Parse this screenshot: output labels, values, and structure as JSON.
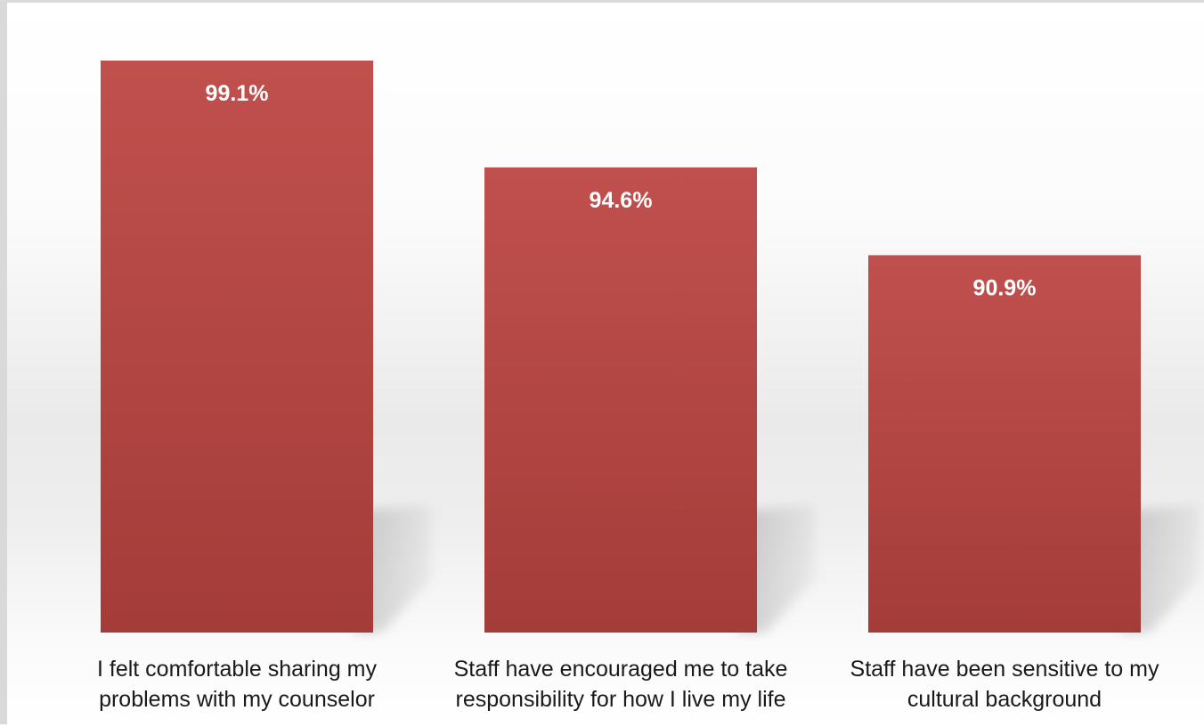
{
  "chart_data": {
    "type": "bar",
    "categories": [
      [
        "I felt comfortable sharing my",
        "problems with my counselor"
      ],
      [
        "Staff have encouraged me to take",
        "responsibility for how I live my life"
      ],
      [
        "Staff have been sensitive to my",
        "cultural background"
      ]
    ],
    "values": [
      99.1,
      94.6,
      90.9
    ],
    "data_labels": [
      "99.1%",
      "94.6%",
      "90.9%"
    ],
    "title": "",
    "xlabel": "",
    "ylabel": "",
    "ylim": [
      75,
      100
    ],
    "grid": false,
    "legend": "none",
    "colors": {
      "bar_top": "#c0504d",
      "bar_bottom": "#a43c39",
      "label_text": "#ffffff",
      "category_text": "#1a1a1a",
      "shadow": "#9a9a9a"
    }
  }
}
